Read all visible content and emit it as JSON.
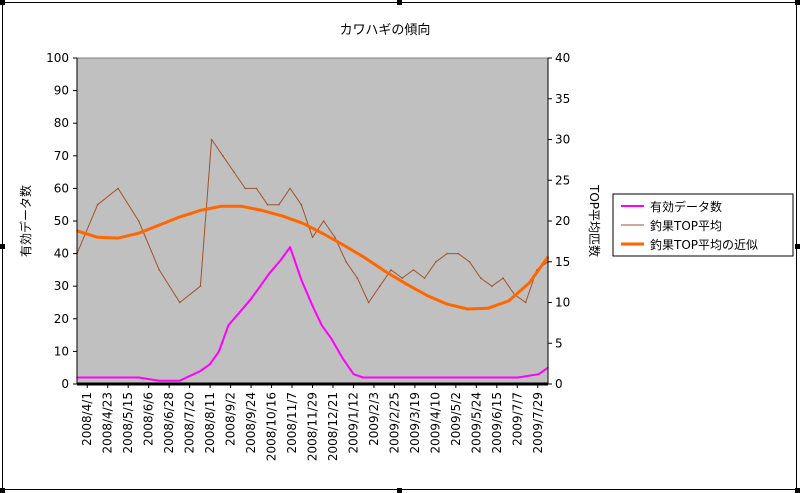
{
  "chart_data": {
    "type": "line",
    "title": "カワハギの傾向",
    "ylabel": "有効データ数",
    "y2label": "TOP平均匹数",
    "ylim": [
      0,
      100
    ],
    "y2lim": [
      0,
      40
    ],
    "yticks": [
      "0",
      "10",
      "20",
      "30",
      "40",
      "50",
      "60",
      "70",
      "80",
      "90",
      "100"
    ],
    "y2ticks": [
      "0",
      "5",
      "10",
      "15",
      "20",
      "25",
      "30",
      "35",
      "40"
    ],
    "xticks": [
      "2008/4/1",
      "2008/4/23",
      "2008/5/15",
      "2008/6/6",
      "2008/6/28",
      "2008/7/20",
      "2008/8/11",
      "2008/9/2",
      "2008/9/24",
      "2008/10/16",
      "2008/11/7",
      "2008/11/29",
      "2008/12/21",
      "2009/1/12",
      "2009/2/3",
      "2009/2/25",
      "2009/3/19",
      "2009/4/10",
      "2009/5/2",
      "2009/5/24",
      "2009/6/15",
      "2009/7/7",
      "2009/7/29"
    ],
    "legend_position": "right",
    "plot_background": "#c0c0c0",
    "series": [
      {
        "name": "有効データ数",
        "axis": "left",
        "color": "#ff00ff",
        "x_days": [
          0,
          22,
          44,
          66,
          88,
          110,
          132,
          142,
          152,
          162,
          174,
          186,
          196,
          206,
          218,
          228,
          240,
          252,
          262,
          272,
          284,
          296,
          306,
          318,
          340,
          362,
          384,
          406,
          428,
          450,
          472,
          494,
          504
        ],
        "values": [
          2,
          2,
          2,
          2,
          1,
          1,
          4,
          6,
          10,
          18,
          22,
          26,
          30,
          34,
          38,
          42,
          32,
          24,
          18,
          14,
          8,
          3,
          2,
          2,
          2,
          2,
          2,
          2,
          2,
          2,
          2,
          3,
          5
        ]
      },
      {
        "name": "釣果TOP平均",
        "axis": "right",
        "color": "#a0522d",
        "x_days": [
          0,
          22,
          44,
          66,
          88,
          110,
          132,
          144,
          156,
          168,
          180,
          192,
          204,
          216,
          228,
          240,
          252,
          264,
          276,
          288,
          300,
          312,
          324,
          336,
          348,
          360,
          372,
          384,
          396,
          408,
          420,
          432,
          444,
          456,
          468,
          480,
          492,
          504
        ],
        "values": [
          16,
          22,
          24,
          20,
          14,
          10,
          12,
          30,
          28,
          26,
          24,
          24,
          22,
          22,
          24,
          22,
          18,
          20,
          18,
          15,
          13,
          10,
          12,
          14,
          13,
          14,
          13,
          15,
          16,
          16,
          15,
          13,
          12,
          13,
          11,
          10,
          14,
          15
        ]
      },
      {
        "name": "釣果TOP平均の近似",
        "axis": "right",
        "color": "#ff6600",
        "x_days": [
          0,
          22,
          44,
          66,
          88,
          110,
          132,
          154,
          176,
          198,
          220,
          242,
          264,
          286,
          308,
          330,
          352,
          374,
          396,
          418,
          440,
          462,
          484,
          504
        ],
        "values": [
          18.8,
          18.0,
          17.9,
          18.5,
          19.5,
          20.5,
          21.3,
          21.8,
          21.8,
          21.3,
          20.6,
          19.7,
          18.4,
          17.0,
          15.5,
          13.8,
          12.3,
          10.9,
          9.8,
          9.2,
          9.3,
          10.2,
          12.4,
          15.6
        ]
      }
    ]
  }
}
